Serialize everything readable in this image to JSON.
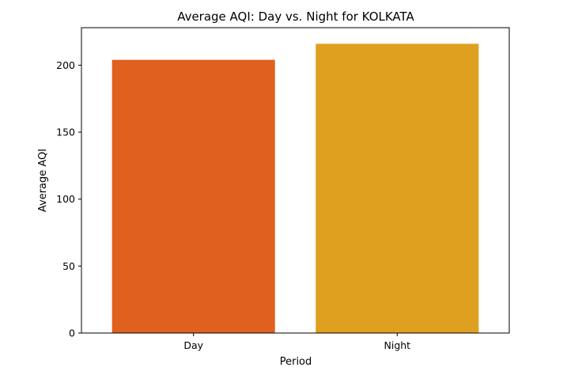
{
  "chart_data": {
    "type": "bar",
    "title": "Average AQI: Day vs. Night for KOLKATA",
    "xlabel": "Period",
    "ylabel": "Average AQI",
    "categories": [
      "Day",
      "Night"
    ],
    "values": [
      204,
      216
    ],
    "colors": [
      "#e06020",
      "#dfa020"
    ],
    "ylim": [
      0,
      228
    ],
    "yticks": [
      0,
      50,
      100,
      150,
      200
    ],
    "grid": false,
    "legend": "none"
  }
}
